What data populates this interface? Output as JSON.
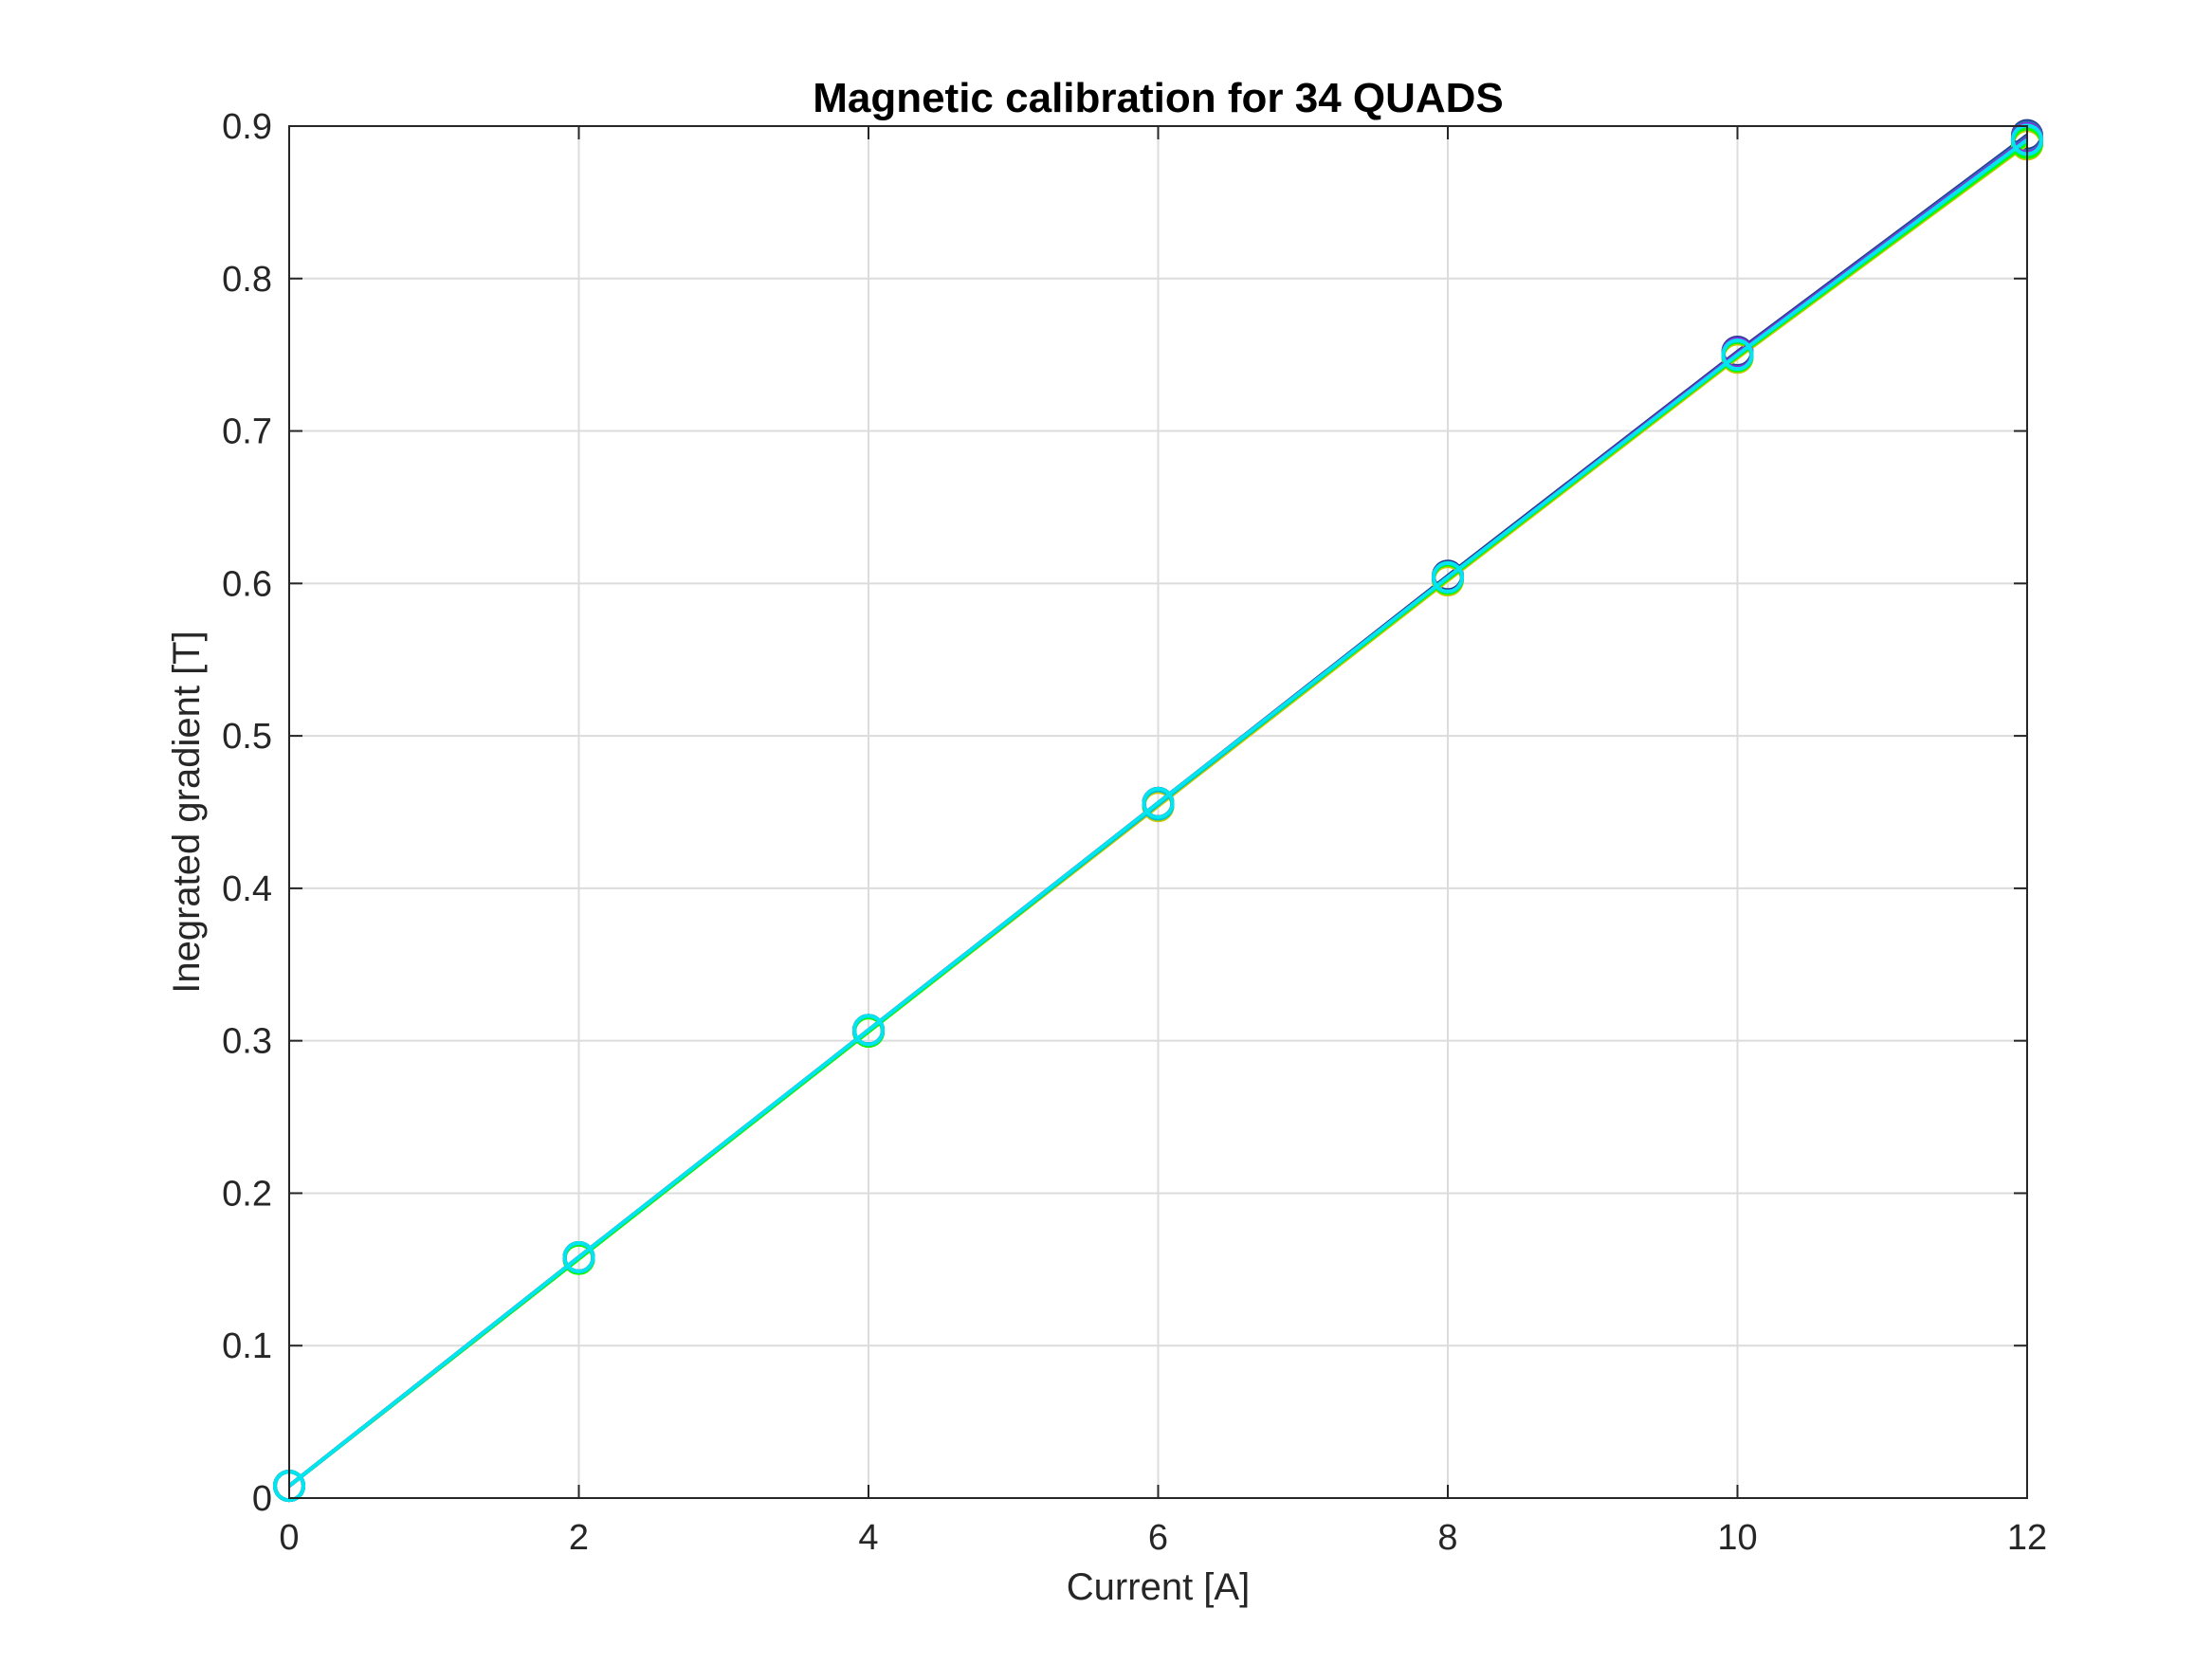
{
  "chart_data": {
    "type": "line",
    "title": "Magnetic calibration for 34 QUADS",
    "xlabel": "Current [A]",
    "ylabel": "Inegrated gradient [T]",
    "xlim": [
      0,
      12
    ],
    "ylim": [
      0,
      0.9
    ],
    "xticks": [
      "0",
      "2",
      "4",
      "6",
      "8",
      "10",
      "12"
    ],
    "yticks": [
      "0",
      "0.1",
      "0.2",
      "0.3",
      "0.4",
      "0.5",
      "0.6",
      "0.7",
      "0.8",
      "0.9"
    ],
    "grid": true,
    "marker": "circle",
    "x": [
      0,
      2,
      4,
      6,
      8,
      10,
      12
    ],
    "series": [
      {
        "color": "#1f3a93",
        "values": [
          0.008,
          0.158,
          0.307,
          0.456,
          0.605,
          0.752,
          0.894
        ]
      },
      {
        "color": "#2a6fb5",
        "values": [
          0.008,
          0.158,
          0.307,
          0.456,
          0.604,
          0.751,
          0.893
        ]
      },
      {
        "color": "#4b4b8f",
        "values": [
          0.008,
          0.158,
          0.306,
          0.455,
          0.604,
          0.751,
          0.892
        ]
      },
      {
        "color": "#3a8f8f",
        "values": [
          0.008,
          0.157,
          0.306,
          0.455,
          0.603,
          0.75,
          0.891
        ]
      },
      {
        "color": "#7a7a7a",
        "values": [
          0.008,
          0.158,
          0.307,
          0.456,
          0.604,
          0.751,
          0.892
        ]
      },
      {
        "color": "#2ca02c",
        "values": [
          0.008,
          0.157,
          0.306,
          0.455,
          0.603,
          0.749,
          0.889
        ]
      },
      {
        "color": "#9acd32",
        "values": [
          0.008,
          0.157,
          0.306,
          0.454,
          0.603,
          0.749,
          0.888
        ]
      },
      {
        "color": "#d2c400",
        "values": [
          0.008,
          0.157,
          0.306,
          0.454,
          0.602,
          0.748,
          0.888
        ]
      },
      {
        "color": "#00ff00",
        "values": [
          0.008,
          0.157,
          0.306,
          0.455,
          0.603,
          0.749,
          0.889
        ]
      },
      {
        "color": "#ff00ff",
        "values": [
          0.008,
          0.158,
          0.307,
          0.456,
          0.604,
          0.75,
          0.891
        ]
      },
      {
        "color": "#8a2be2",
        "values": [
          0.008,
          0.158,
          0.307,
          0.456,
          0.604,
          0.751,
          0.892
        ]
      },
      {
        "color": "#00bcd4",
        "values": [
          0.008,
          0.158,
          0.307,
          0.455,
          0.604,
          0.75,
          0.891
        ]
      },
      {
        "color": "#00e5ee",
        "values": [
          0.008,
          0.158,
          0.307,
          0.456,
          0.604,
          0.75,
          0.891
        ]
      }
    ]
  }
}
